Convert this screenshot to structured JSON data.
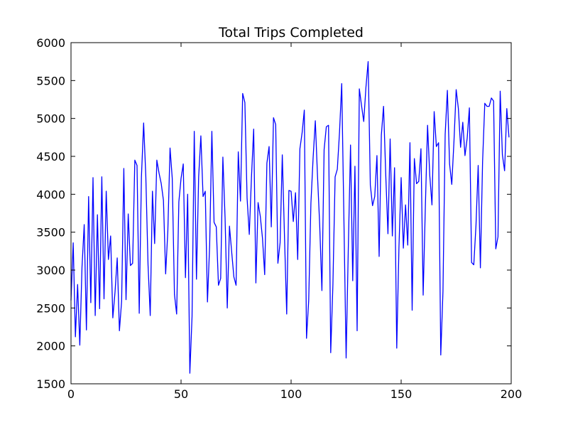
{
  "chart_data": {
    "type": "line",
    "title": "Total Trips Completed",
    "xlabel": "",
    "ylabel": "",
    "xlim": [
      0,
      200
    ],
    "ylim": [
      1500,
      6000
    ],
    "xticks": [
      0,
      50,
      100,
      150,
      200
    ],
    "yticks": [
      1500,
      2000,
      2500,
      3000,
      3500,
      4000,
      4500,
      5000,
      5500,
      6000
    ],
    "grid": false,
    "legend": "none",
    "colors": {
      "line": "#0000ff",
      "axes": "#000000",
      "background": "#ffffff"
    },
    "series": [
      {
        "name": "",
        "x": [
          0,
          1,
          2,
          3,
          4,
          5,
          6,
          7,
          8,
          9,
          10,
          11,
          12,
          13,
          14,
          15,
          16,
          17,
          18,
          19,
          20,
          21,
          22,
          23,
          24,
          25,
          26,
          27,
          28,
          29,
          30,
          31,
          32,
          33,
          34,
          35,
          36,
          37,
          38,
          39,
          40,
          41,
          42,
          43,
          44,
          45,
          46,
          47,
          48,
          49,
          50,
          51,
          52,
          53,
          54,
          55,
          56,
          57,
          58,
          59,
          60,
          61,
          62,
          63,
          64,
          65,
          66,
          67,
          68,
          69,
          70,
          71,
          72,
          73,
          74,
          75,
          76,
          77,
          78,
          79,
          80,
          81,
          82,
          83,
          84,
          85,
          86,
          87,
          88,
          89,
          90,
          91,
          92,
          93,
          94,
          95,
          96,
          97,
          98,
          99,
          100,
          101,
          102,
          103,
          104,
          105,
          106,
          107,
          108,
          109,
          110,
          111,
          112,
          113,
          114,
          115,
          116,
          117,
          118,
          119,
          120,
          121,
          122,
          123,
          124,
          125,
          126,
          127,
          128,
          129,
          130,
          131,
          132,
          133,
          134,
          135,
          136,
          137,
          138,
          139,
          140,
          141,
          142,
          143,
          144,
          145,
          146,
          147,
          148,
          149,
          150,
          151,
          152,
          153,
          154,
          155,
          156,
          157,
          158,
          159,
          160,
          161,
          162,
          163,
          164,
          165,
          166,
          167,
          168,
          169,
          170,
          171,
          172,
          173,
          174,
          175,
          176,
          177,
          178,
          179,
          180,
          181,
          182,
          183,
          184,
          185,
          186,
          187,
          188,
          189,
          190,
          191,
          192,
          193,
          194,
          195,
          196,
          197,
          198,
          199
        ],
        "values": [
          2600,
          3360,
          2120,
          2810,
          2010,
          3040,
          3600,
          2210,
          3970,
          2570,
          4220,
          2400,
          3730,
          2490,
          4230,
          2620,
          4040,
          3140,
          3450,
          2370,
          2710,
          3160,
          2200,
          2590,
          4340,
          2610,
          3740,
          3060,
          3090,
          4450,
          4380,
          2430,
          4230,
          4940,
          4230,
          3070,
          2400,
          4040,
          3350,
          4450,
          4280,
          4140,
          3920,
          2950,
          3520,
          4610,
          4210,
          2680,
          2420,
          3900,
          4210,
          4400,
          2900,
          4000,
          1640,
          2390,
          4830,
          2880,
          4230,
          4770,
          3970,
          4040,
          2580,
          3330,
          4830,
          3630,
          3570,
          2800,
          2890,
          4490,
          3690,
          2500,
          3580,
          3240,
          2910,
          2800,
          4560,
          3910,
          5330,
          5210,
          3950,
          3470,
          4230,
          4860,
          2830,
          3890,
          3710,
          3420,
          2940,
          4410,
          4630,
          3570,
          5010,
          4920,
          3090,
          3360,
          4520,
          3440,
          2420,
          4050,
          4040,
          3640,
          4020,
          3140,
          4600,
          4810,
          5110,
          2100,
          2600,
          3880,
          4480,
          4970,
          4240,
          3590,
          2730,
          4590,
          4890,
          4910,
          1910,
          2810,
          4230,
          4330,
          4820,
          5460,
          3660,
          1840,
          3300,
          4650,
          2860,
          4370,
          2200,
          5390,
          5170,
          4960,
          5410,
          5750,
          4120,
          3850,
          3970,
          4510,
          3180,
          4780,
          5160,
          4260,
          3480,
          4730,
          3450,
          4350,
          1970,
          3300,
          4220,
          3290,
          3860,
          3330,
          4680,
          2470,
          4470,
          4140,
          4170,
          4600,
          2670,
          3840,
          4910,
          4250,
          3860,
          5090,
          4630,
          4680,
          1880,
          2720,
          4790,
          5370,
          4400,
          4130,
          4700,
          5380,
          5130,
          4620,
          4950,
          4510,
          4740,
          5140,
          3100,
          3070,
          3590,
          4380,
          3030,
          4430,
          5200,
          5160,
          5160,
          5270,
          5230,
          3280,
          3440,
          5360,
          4520,
          4310,
          5130,
          4750
        ]
      }
    ]
  }
}
